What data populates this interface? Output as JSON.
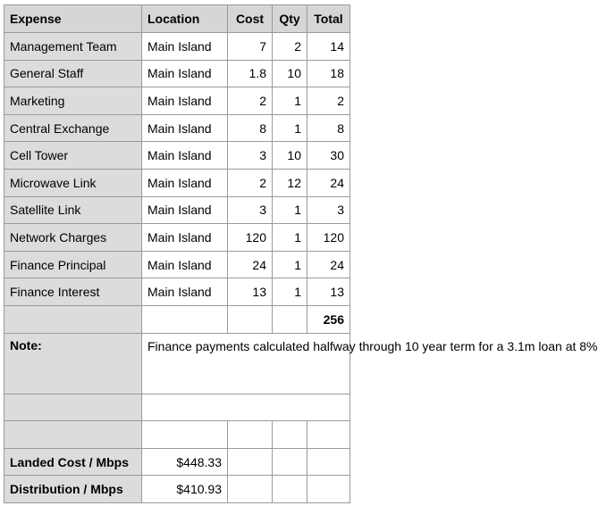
{
  "columns": [
    "Expense",
    "Location",
    "Cost",
    "Qty",
    "Total"
  ],
  "rows": [
    {
      "expense": "Management Team",
      "location": "Main Island",
      "cost": "7",
      "qty": "2",
      "total": "14"
    },
    {
      "expense": "General Staff",
      "location": "Main Island",
      "cost": "1.8",
      "qty": "10",
      "total": "18"
    },
    {
      "expense": "Marketing",
      "location": "Main Island",
      "cost": "2",
      "qty": "1",
      "total": "2"
    },
    {
      "expense": "Central Exchange",
      "location": "Main Island",
      "cost": "8",
      "qty": "1",
      "total": "8"
    },
    {
      "expense": "Cell Tower",
      "location": "Main Island",
      "cost": "3",
      "qty": "10",
      "total": "30"
    },
    {
      "expense": "Microwave Link",
      "location": "Main Island",
      "cost": "2",
      "qty": "12",
      "total": "24"
    },
    {
      "expense": "Satellite Link",
      "location": "Main Island",
      "cost": "3",
      "qty": "1",
      "total": "3"
    },
    {
      "expense": "Network Charges",
      "location": "Main Island",
      "cost": "120",
      "qty": "1",
      "total": "120"
    },
    {
      "expense": "Finance Principal",
      "location": "Main Island",
      "cost": "24",
      "qty": "1",
      "total": "24"
    },
    {
      "expense": "Finance Interest",
      "location": "Main Island",
      "cost": "13",
      "qty": "1",
      "total": "13"
    }
  ],
  "grand_total": "256",
  "note": {
    "label": "Note:",
    "text": "Finance payments calculated halfway through 10 year term for a 3.1m loan at 8%"
  },
  "summary": [
    {
      "label": "Landed Cost / Mbps",
      "value": "$448.33"
    },
    {
      "label": "Distribution / Mbps",
      "value": "$410.93"
    }
  ]
}
